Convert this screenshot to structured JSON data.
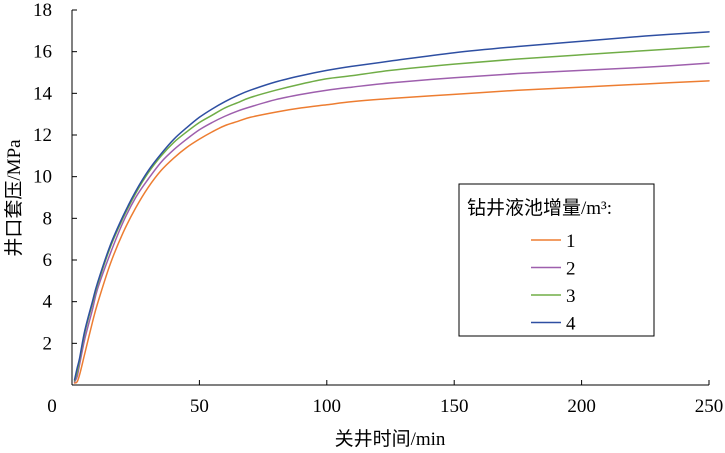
{
  "chart_data": {
    "type": "line",
    "title": "",
    "xlabel": "关井时间/min",
    "ylabel": "井口套压/MPa",
    "xlim": [
      0,
      250
    ],
    "ylim": [
      0,
      18
    ],
    "x_ticks": [
      0,
      50,
      100,
      150,
      200,
      250
    ],
    "y_ticks": [
      2,
      4,
      6,
      8,
      10,
      12,
      14,
      16,
      18
    ],
    "x_origin_label": "0",
    "grid": false,
    "legend": {
      "title": "钻井液池增量/m³:",
      "position": "right-center"
    },
    "x": [
      0,
      1,
      2,
      3,
      5,
      8,
      10,
      15,
      20,
      25,
      30,
      35,
      40,
      45,
      50,
      55,
      60,
      65,
      70,
      80,
      90,
      100,
      110,
      125,
      150,
      175,
      200,
      225,
      250
    ],
    "series": [
      {
        "name": "1",
        "color": "#ed7d31",
        "values": [
          null,
          0.1,
          0.15,
          0.5,
          1.5,
          3.0,
          3.9,
          5.8,
          7.3,
          8.5,
          9.5,
          10.3,
          10.9,
          11.4,
          11.8,
          12.15,
          12.45,
          12.65,
          12.85,
          13.1,
          13.3,
          13.45,
          13.6,
          13.75,
          13.95,
          14.15,
          14.3,
          14.45,
          14.6
        ]
      },
      {
        "name": "2",
        "color": "#9e5fad",
        "values": [
          null,
          0.15,
          0.4,
          1.0,
          2.2,
          3.6,
          4.6,
          6.3,
          7.8,
          9.0,
          9.9,
          10.7,
          11.3,
          11.8,
          12.25,
          12.6,
          12.9,
          13.15,
          13.35,
          13.7,
          13.95,
          14.15,
          14.3,
          14.5,
          14.75,
          14.95,
          15.1,
          15.25,
          15.45
        ]
      },
      {
        "name": "3",
        "color": "#70ad47",
        "values": [
          null,
          0.2,
          0.6,
          1.2,
          2.5,
          3.9,
          4.8,
          6.6,
          8.0,
          9.2,
          10.2,
          11.0,
          11.65,
          12.15,
          12.6,
          12.95,
          13.3,
          13.55,
          13.8,
          14.15,
          14.45,
          14.7,
          14.85,
          15.1,
          15.4,
          15.65,
          15.85,
          16.05,
          16.25
        ]
      },
      {
        "name": "4",
        "color": "#2e4fa2",
        "values": [
          null,
          0.25,
          0.8,
          1.3,
          2.6,
          4.0,
          4.9,
          6.7,
          8.1,
          9.3,
          10.3,
          11.1,
          11.8,
          12.35,
          12.85,
          13.25,
          13.6,
          13.9,
          14.15,
          14.55,
          14.85,
          15.1,
          15.3,
          15.55,
          15.95,
          16.25,
          16.5,
          16.75,
          16.95
        ]
      }
    ]
  }
}
